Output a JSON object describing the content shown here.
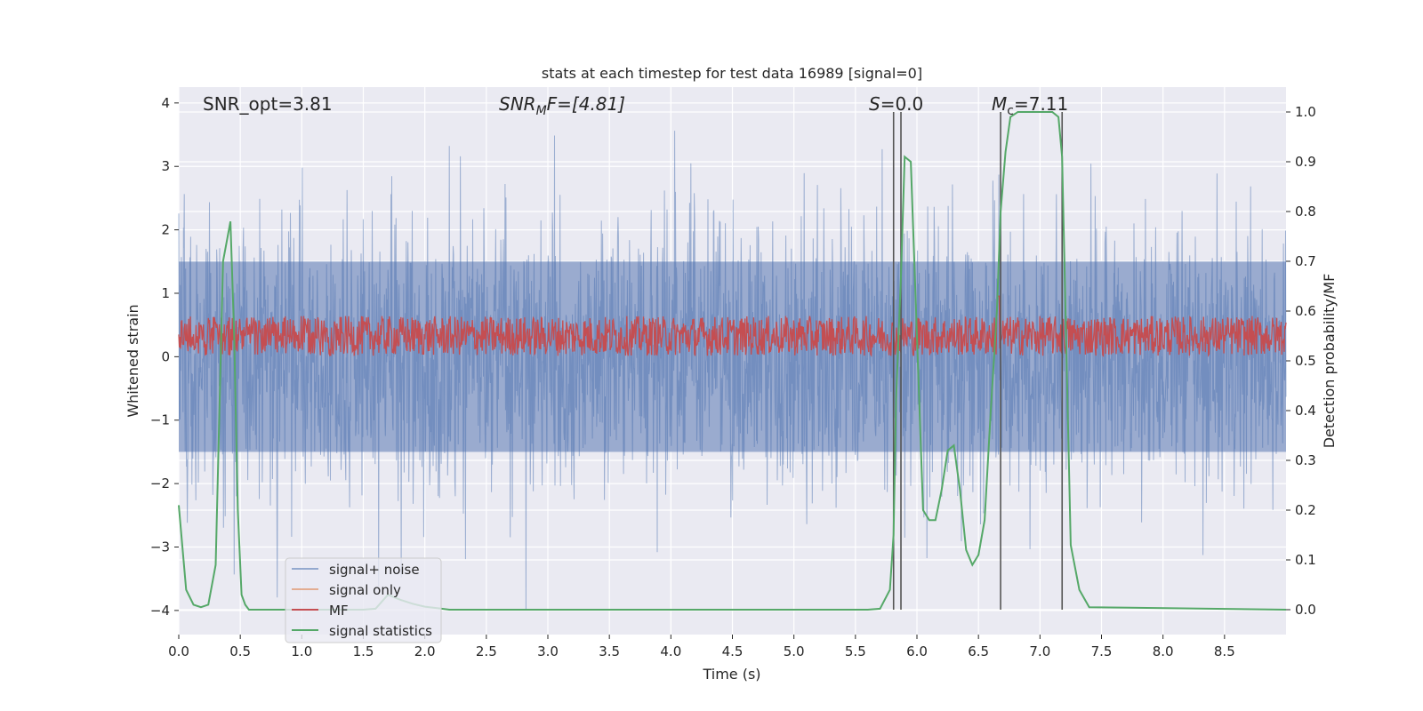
{
  "chart_data": {
    "type": "line",
    "title": "stats at each timestep for test data 16989 [signal=0]",
    "xlabel": "Time (s)",
    "ylabel_left": "Whitened strain",
    "ylabel_right": "Detection probability/MF",
    "xlim": [
      0,
      9
    ],
    "ylim_left": [
      -4.38,
      4.25
    ],
    "ylim_right": [
      -0.05,
      1.05
    ],
    "x_ticks": [
      "0.0",
      "0.5",
      "1.0",
      "1.5",
      "2.0",
      "2.5",
      "3.0",
      "3.5",
      "4.0",
      "4.5",
      "5.0",
      "5.5",
      "6.0",
      "6.5",
      "7.0",
      "7.5",
      "8.0",
      "8.5"
    ],
    "y_ticks_left": [
      "−4",
      "−3",
      "−2",
      "−1",
      "0",
      "1",
      "2",
      "3",
      "4"
    ],
    "y_ticks_right": [
      "0.0",
      "0.1",
      "0.2",
      "0.3",
      "0.4",
      "0.5",
      "0.6",
      "0.7",
      "0.8",
      "0.9",
      "1.0"
    ],
    "grid": true,
    "legend_position": "lower-left",
    "annotations": {
      "snr_opt": "SNR_opt=3.81",
      "snr_mf_main": "SNR",
      "snr_mf_sub": "M",
      "snr_mf_tail": "F=[4.81]",
      "s_main": "S",
      "s_tail": "=0.0",
      "mc_main": "M",
      "mc_sub": "c",
      "mc_tail": "=7.11"
    },
    "vertical_lines_s": [
      5.81,
      5.87,
      6.68,
      7.18
    ],
    "series": [
      {
        "name": "signal+ noise",
        "color": "#4c72b0",
        "description_stats": {
          "core_band": [
            -1.5,
            1.5
          ],
          "typical_peaks": [
            -2.8,
            3.1
          ],
          "extreme": [
            -4.0,
            3.85
          ]
        }
      },
      {
        "name": "signal only",
        "color": "#dd8452",
        "values": []
      },
      {
        "name": "MF",
        "color": "#c44e52",
        "description_stats": {
          "band_right_axis": [
            0.51,
            0.59
          ],
          "spike_time": 6.66,
          "spike_value": 0.63
        }
      },
      {
        "name": "signal statistics",
        "color": "#55a868",
        "x": [
          0.0,
          0.06,
          0.12,
          0.18,
          0.24,
          0.3,
          0.36,
          0.42,
          0.45,
          0.48,
          0.51,
          0.54,
          0.57,
          1.5,
          1.6,
          1.7,
          1.8,
          1.9,
          2.0,
          2.1,
          2.2,
          5.6,
          5.7,
          5.78,
          5.81,
          5.83,
          5.87,
          5.9,
          5.95,
          6.0,
          6.05,
          6.1,
          6.15,
          6.2,
          6.25,
          6.3,
          6.35,
          6.4,
          6.45,
          6.5,
          6.55,
          6.6,
          6.65,
          6.68,
          6.72,
          6.76,
          6.82,
          6.9,
          7.0,
          7.1,
          7.15,
          7.18,
          7.25,
          7.32,
          7.4,
          9.0
        ],
        "y": [
          0.21,
          0.04,
          0.01,
          0.005,
          0.01,
          0.09,
          0.7,
          0.78,
          0.55,
          0.2,
          0.03,
          0.01,
          0.0,
          0.0,
          0.002,
          0.03,
          0.02,
          0.012,
          0.006,
          0.003,
          0.0,
          0.0,
          0.002,
          0.04,
          0.15,
          0.42,
          0.67,
          0.91,
          0.9,
          0.55,
          0.2,
          0.18,
          0.18,
          0.24,
          0.32,
          0.33,
          0.24,
          0.12,
          0.09,
          0.11,
          0.18,
          0.4,
          0.6,
          0.8,
          0.92,
          0.99,
          1.0,
          1.0,
          1.0,
          1.0,
          0.99,
          0.91,
          0.13,
          0.04,
          0.005,
          0.0
        ]
      }
    ]
  }
}
